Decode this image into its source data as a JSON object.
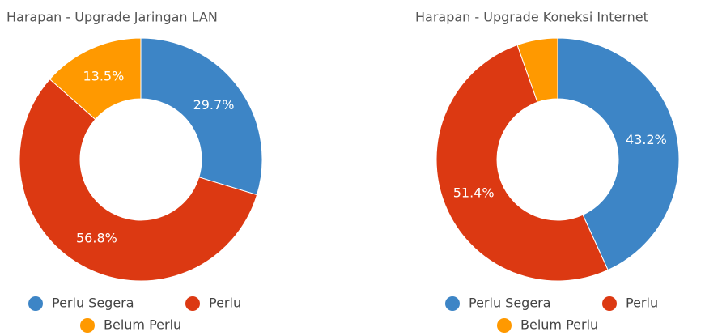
{
  "chart_data": [
    {
      "type": "donut",
      "title": "Harapan - Upgrade Jaringan LAN",
      "categories": [
        "Perlu Segera",
        "Perlu",
        "Belum Perlu"
      ],
      "values": [
        29.7,
        56.8,
        13.5
      ],
      "value_labels": [
        "29.7%",
        "56.8%",
        "13.5%"
      ],
      "colors": [
        "#3d85c6",
        "#dc3912",
        "#ff9900"
      ]
    },
    {
      "type": "donut",
      "title": "Harapan - Upgrade Koneksi Internet",
      "categories": [
        "Perlu Segera",
        "Perlu",
        "Belum Perlu"
      ],
      "values": [
        43.2,
        51.4,
        5.4
      ],
      "value_labels": [
        "43.2%",
        "51.4%",
        null
      ],
      "colors": [
        "#3d85c6",
        "#dc3912",
        "#ff9900"
      ]
    }
  ]
}
